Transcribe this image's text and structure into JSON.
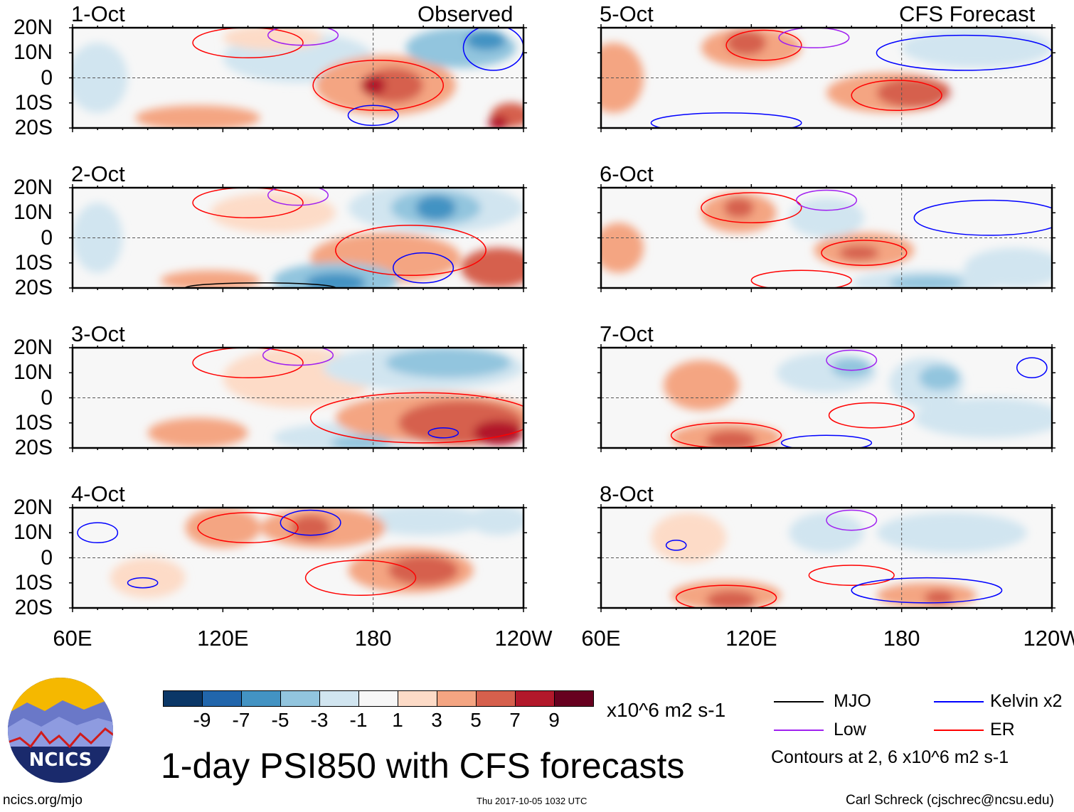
{
  "title": "1-day PSI850 with CFS forecasts",
  "site": "ncics.org/mjo",
  "timestamp": "Thu 2017-10-05 1032 UTC",
  "author": "Carl Schreck (cjschrec@ncsu.edu)",
  "logo_text": "NCICS",
  "column_labels": {
    "left": "Observed",
    "right": "CFS Forecast"
  },
  "lat_labels": [
    "20N",
    "10N",
    "0",
    "10S",
    "20S"
  ],
  "lon_labels": [
    "60E",
    "120E",
    "180",
    "120W"
  ],
  "colorbar": {
    "units": "x10^6 m2 s-1",
    "ticks": [
      "-9",
      "-7",
      "-5",
      "-3",
      "-1",
      "1",
      "3",
      "5",
      "7",
      "9"
    ],
    "colors": [
      "#0b3767",
      "#2166ac",
      "#4393c3",
      "#92c5de",
      "#d1e5f0",
      "#f7f7f7",
      "#fddbc7",
      "#f4a582",
      "#d6604d",
      "#b2182b",
      "#67001f"
    ]
  },
  "legend": {
    "items": [
      {
        "label": "MJO",
        "color": "#000000"
      },
      {
        "label": "Kelvin x2",
        "color": "#0000ff"
      },
      {
        "label": "Low",
        "color": "#a020f0"
      },
      {
        "label": "ER",
        "color": "#ff0000"
      }
    ],
    "note": "Contours at 2, 6 x10^6 m2 s-1"
  },
  "chart_data": {
    "type": "heatmap",
    "variable": "PSI850 anomaly",
    "lon_range": [
      60,
      240
    ],
    "lat_range": [
      -20,
      20
    ],
    "panels": [
      {
        "date": "1-Oct",
        "col": "left",
        "row": 0,
        "blobs": [
          [
            70,
            0,
            12,
            14,
            -3
          ],
          [
            150,
            8,
            30,
            10,
            -2
          ],
          [
            215,
            12,
            22,
            8,
            -5
          ],
          [
            225,
            15,
            8,
            4,
            -7
          ],
          [
            185,
            -3,
            28,
            12,
            3
          ],
          [
            188,
            -3,
            12,
            7,
            5
          ],
          [
            180,
            -3,
            5,
            4,
            7
          ],
          [
            110,
            -16,
            25,
            5,
            3
          ],
          [
            140,
            16,
            20,
            5,
            2
          ],
          [
            235,
            -15,
            8,
            5,
            5
          ],
          [
            230,
            -18,
            4,
            3,
            7
          ]
        ],
        "contours": [
          [
            182,
            -3,
            26,
            10,
            "ER"
          ],
          [
            130,
            14,
            22,
            6,
            "ER"
          ],
          [
            152,
            17,
            14,
            4,
            "Low"
          ],
          [
            228,
            12,
            12,
            9,
            "Kelvin"
          ],
          [
            180,
            -15,
            10,
            4,
            "Kelvin"
          ]
        ]
      },
      {
        "date": "2-Oct",
        "col": "left",
        "row": 1,
        "blobs": [
          [
            70,
            0,
            10,
            14,
            -3
          ],
          [
            205,
            12,
            35,
            10,
            -3
          ],
          [
            205,
            12,
            18,
            7,
            -5
          ],
          [
            205,
            12,
            8,
            5,
            -7
          ],
          [
            165,
            -17,
            25,
            7,
            -5
          ],
          [
            165,
            -18,
            12,
            4,
            -7
          ],
          [
            140,
            10,
            25,
            8,
            2
          ],
          [
            185,
            -8,
            30,
            10,
            3
          ],
          [
            230,
            -12,
            15,
            8,
            5
          ],
          [
            115,
            -17,
            20,
            4,
            3
          ]
        ],
        "contours": [
          [
            195,
            -5,
            30,
            10,
            "ER"
          ],
          [
            130,
            14,
            22,
            6,
            "ER"
          ],
          [
            150,
            17,
            12,
            4,
            "Low"
          ],
          [
            200,
            -12,
            12,
            6,
            "Kelvin"
          ],
          [
            135,
            -20,
            30,
            2,
            "MJO"
          ]
        ]
      },
      {
        "date": "3-Oct",
        "col": "left",
        "row": 2,
        "blobs": [
          [
            200,
            12,
            40,
            9,
            -3
          ],
          [
            210,
            14,
            25,
            6,
            -5
          ],
          [
            170,
            -16,
            30,
            6,
            -3
          ],
          [
            175,
            -18,
            12,
            3,
            -5
          ],
          [
            150,
            8,
            30,
            12,
            2
          ],
          [
            205,
            -8,
            40,
            10,
            3
          ],
          [
            215,
            -10,
            25,
            9,
            5
          ],
          [
            230,
            -14,
            10,
            5,
            7
          ],
          [
            110,
            -14,
            20,
            6,
            3
          ]
        ],
        "contours": [
          [
            200,
            -8,
            45,
            10,
            "ER"
          ],
          [
            130,
            14,
            22,
            6,
            "ER"
          ],
          [
            150,
            17,
            14,
            4,
            "Low"
          ],
          [
            208,
            -14,
            6,
            2,
            "Kelvin"
          ]
        ]
      },
      {
        "date": "4-Oct",
        "col": "left",
        "row": 3,
        "blobs": [
          [
            160,
            12,
            25,
            8,
            3
          ],
          [
            155,
            12,
            8,
            5,
            5
          ],
          [
            120,
            12,
            15,
            8,
            3
          ],
          [
            195,
            -5,
            25,
            9,
            3
          ],
          [
            200,
            -5,
            14,
            6,
            5
          ],
          [
            230,
            15,
            12,
            6,
            -3
          ],
          [
            90,
            -8,
            15,
            8,
            2
          ],
          [
            200,
            15,
            25,
            6,
            -2
          ]
        ],
        "contours": [
          [
            175,
            -8,
            22,
            7,
            "ER"
          ],
          [
            130,
            12,
            20,
            6,
            "ER"
          ],
          [
            155,
            14,
            12,
            5,
            "Kelvin"
          ],
          [
            88,
            -10,
            6,
            2,
            "Kelvin"
          ],
          [
            70,
            10,
            8,
            4,
            "Kelvin"
          ]
        ]
      },
      {
        "date": "5-Oct",
        "col": "right",
        "row": 0,
        "blobs": [
          [
            65,
            0,
            12,
            14,
            3
          ],
          [
            120,
            12,
            20,
            8,
            3
          ],
          [
            118,
            14,
            8,
            5,
            5
          ],
          [
            175,
            -6,
            25,
            8,
            3
          ],
          [
            185,
            -6,
            15,
            6,
            5
          ],
          [
            210,
            12,
            30,
            8,
            -2
          ],
          [
            220,
            -10,
            25,
            8,
            -1
          ]
        ],
        "contours": [
          [
            178,
            -7,
            18,
            6,
            "ER"
          ],
          [
            125,
            13,
            15,
            6,
            "ER"
          ],
          [
            145,
            16,
            14,
            4,
            "Low"
          ],
          [
            205,
            10,
            35,
            7,
            "Kelvin"
          ],
          [
            110,
            -18,
            30,
            4,
            "Kelvin"
          ]
        ]
      },
      {
        "date": "6-Oct",
        "col": "right",
        "row": 1,
        "blobs": [
          [
            67,
            -4,
            10,
            10,
            3
          ],
          [
            115,
            10,
            15,
            8,
            3
          ],
          [
            115,
            12,
            6,
            4,
            5
          ],
          [
            165,
            -5,
            20,
            7,
            3
          ],
          [
            163,
            -6,
            8,
            3,
            5
          ],
          [
            150,
            8,
            15,
            8,
            -3
          ],
          [
            190,
            -18,
            30,
            5,
            -3
          ],
          [
            190,
            -18,
            15,
            3,
            -5
          ],
          [
            225,
            -12,
            20,
            8,
            -2
          ]
        ],
        "contours": [
          [
            165,
            -6,
            17,
            5,
            "ER"
          ],
          [
            120,
            12,
            20,
            6,
            "ER"
          ],
          [
            140,
            -17,
            20,
            4,
            "ER"
          ],
          [
            150,
            15,
            12,
            4,
            "Low"
          ],
          [
            215,
            8,
            30,
            7,
            "Kelvin"
          ]
        ]
      },
      {
        "date": "7-Oct",
        "col": "right",
        "row": 2,
        "blobs": [
          [
            100,
            5,
            15,
            10,
            3
          ],
          [
            110,
            -16,
            22,
            6,
            3
          ],
          [
            112,
            -17,
            10,
            4,
            5
          ],
          [
            150,
            10,
            20,
            8,
            -3
          ],
          [
            160,
            12,
            8,
            4,
            -5
          ],
          [
            190,
            6,
            15,
            10,
            -3
          ],
          [
            195,
            8,
            8,
            5,
            -5
          ],
          [
            215,
            -8,
            30,
            8,
            -2
          ]
        ],
        "contours": [
          [
            168,
            -7,
            17,
            5,
            "ER"
          ],
          [
            110,
            -15,
            22,
            5,
            "ER"
          ],
          [
            160,
            15,
            10,
            4,
            "Low"
          ],
          [
            150,
            -18,
            18,
            3,
            "Kelvin"
          ],
          [
            232,
            12,
            6,
            4,
            "Kelvin"
          ]
        ]
      },
      {
        "date": "8-Oct",
        "col": "right",
        "row": 3,
        "blobs": [
          [
            95,
            8,
            15,
            10,
            2
          ],
          [
            110,
            -15,
            22,
            6,
            3
          ],
          [
            112,
            -17,
            10,
            4,
            5
          ],
          [
            150,
            10,
            15,
            8,
            -3
          ],
          [
            200,
            10,
            30,
            8,
            -2
          ],
          [
            190,
            -15,
            20,
            5,
            3
          ],
          [
            195,
            -16,
            6,
            3,
            5
          ]
        ],
        "contours": [
          [
            160,
            -7,
            17,
            4,
            "ER"
          ],
          [
            110,
            -16,
            20,
            5,
            "ER"
          ],
          [
            160,
            15,
            10,
            4,
            "Low"
          ],
          [
            190,
            -13,
            30,
            5,
            "Kelvin"
          ],
          [
            90,
            5,
            4,
            2,
            "Kelvin"
          ]
        ]
      }
    ]
  }
}
